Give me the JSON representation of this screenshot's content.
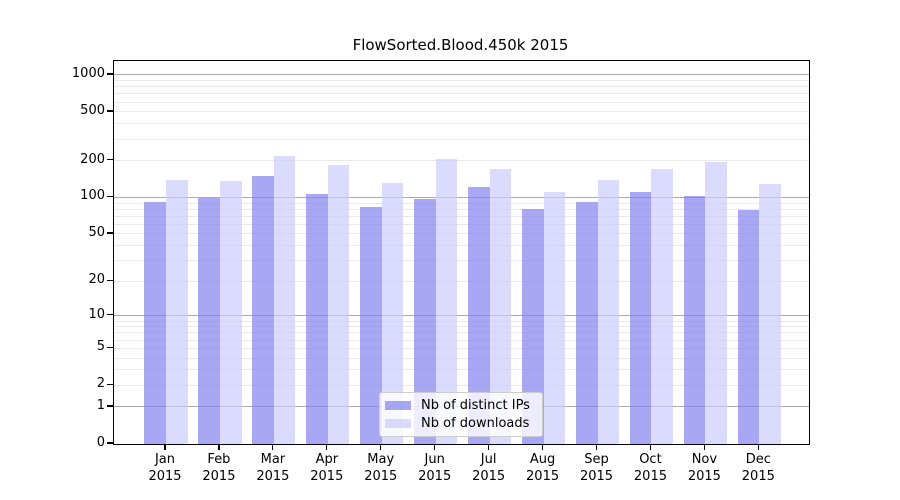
{
  "title": "FlowSorted.Blood.450k 2015",
  "chart_data": {
    "type": "bar",
    "categories": [
      "Jan",
      "Feb",
      "Mar",
      "Apr",
      "May",
      "Jun",
      "Jul",
      "Aug",
      "Sep",
      "Oct",
      "Nov",
      "Dec"
    ],
    "x_sub_label": "2015",
    "series": [
      {
        "name": "Nb of distinct IPs",
        "color_rgba": "rgba(130,130,240,0.7)",
        "values": [
          92,
          99,
          150,
          106,
          83,
          97,
          122,
          80,
          91,
          111,
          103,
          79
        ]
      },
      {
        "name": "Nb of downloads",
        "color_rgba": "rgba(204,204,255,0.7)",
        "values": [
          140,
          137,
          218,
          183,
          131,
          205,
          170,
          110,
          138,
          171,
          196,
          130
        ]
      }
    ],
    "yscale": "log10(1+v)",
    "ylim": [
      0,
      1300
    ],
    "yticks": [
      0,
      1,
      2,
      5,
      10,
      20,
      50,
      100,
      200,
      500,
      1000
    ],
    "major_gridlines": [
      1,
      10,
      100,
      1000
    ],
    "minor_gridlines": [
      2,
      3,
      4,
      5,
      6,
      7,
      8,
      9,
      20,
      30,
      40,
      50,
      60,
      70,
      80,
      90,
      200,
      300,
      400,
      500,
      600,
      700,
      800,
      900
    ],
    "grid": true,
    "legend_position": "lower center"
  },
  "colors": {
    "bar_distinct_ips": "rgba(130,130,240,0.7)",
    "bar_downloads": "rgba(204,204,255,0.7)",
    "gridline_major": "#ababab",
    "gridline_minor": "#e9e9e9",
    "axis_frame": "#000000",
    "legend_border": "#cccccc",
    "background": "#ffffff"
  }
}
